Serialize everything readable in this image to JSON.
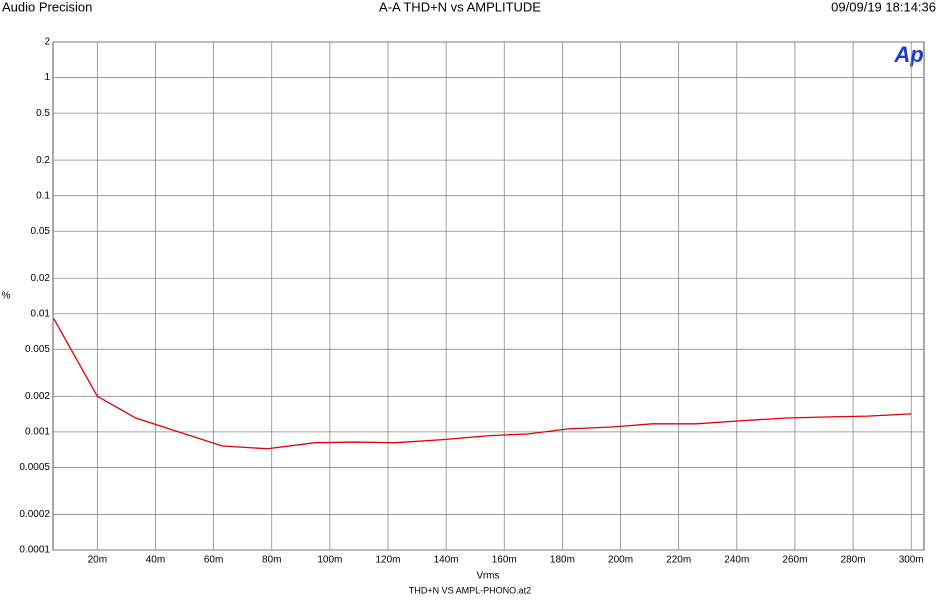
{
  "chart_data": {
    "type": "line",
    "brand": "Audio Precision",
    "title": "A-A THD+N vs AMPLITUDE",
    "timestamp": "09/09/19 18:14:36",
    "logo": "Ap",
    "x_label": "Vrms",
    "y_label": "%",
    "footer": "THD+N VS AMPL-PHONO.at2",
    "x": [
      0.005,
      0.02,
      0.0332,
      0.063,
      0.0785,
      0.095,
      0.109,
      0.1226,
      0.139,
      0.155,
      0.168,
      0.182,
      0.197,
      0.211,
      0.226,
      0.241,
      0.257,
      0.272,
      0.285,
      0.3
    ],
    "series": [
      {
        "color": "#e00000",
        "values": [
          0.0091,
          0.002,
          0.00131,
          0.00076,
          0.00072,
          0.00081,
          0.00082,
          0.00081,
          0.00086,
          0.00093,
          0.00096,
          0.00106,
          0.0011,
          0.00117,
          0.00117,
          0.00124,
          0.00131,
          0.00134,
          0.00136,
          0.00142
        ]
      }
    ],
    "xlim": [
      0.00475,
      0.3044
    ],
    "xticks": [
      {
        "value": 0.02,
        "label": "20m"
      },
      {
        "value": 0.04,
        "label": "40m"
      },
      {
        "value": 0.06,
        "label": "60m"
      },
      {
        "value": 0.08,
        "label": "80m"
      },
      {
        "value": 0.1,
        "label": "100m"
      },
      {
        "value": 0.12,
        "label": "120m"
      },
      {
        "value": 0.14,
        "label": "140m"
      },
      {
        "value": 0.16,
        "label": "160m"
      },
      {
        "value": 0.18,
        "label": "180m"
      },
      {
        "value": 0.2,
        "label": "200m"
      },
      {
        "value": 0.22,
        "label": "220m"
      },
      {
        "value": 0.24,
        "label": "240m"
      },
      {
        "value": 0.26,
        "label": "260m"
      },
      {
        "value": 0.28,
        "label": "280m"
      },
      {
        "value": 0.3,
        "label": "300m"
      }
    ],
    "ylim": [
      0.0001,
      2
    ],
    "yticks": [
      2,
      1,
      0.5,
      0.2,
      0.1,
      0.05,
      0.02,
      0.01,
      0.005,
      0.002,
      0.001,
      0.0005,
      0.0002,
      0.0001
    ],
    "y_log": true,
    "grid": true
  }
}
